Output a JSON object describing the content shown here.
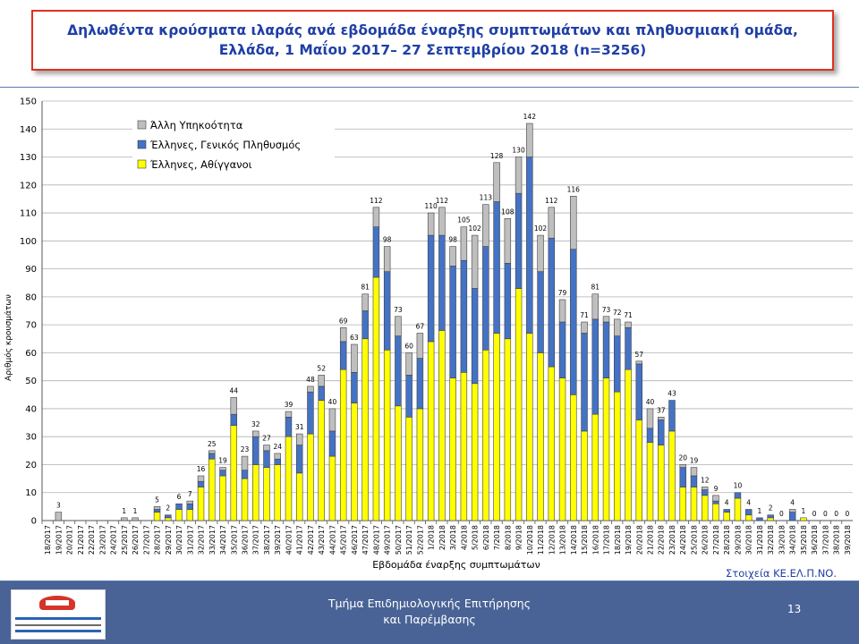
{
  "title": {
    "line1": "Δηλωθέντα κρούσματα ιλαράς ανά εβδομάδα έναρξης συμπτωμάτων και πληθυσμιακή ομάδα,",
    "line2": "Ελλάδα, 1 Μαΐου 2017– 27 Σεπτεμβρίου 2018 (n=3256)"
  },
  "source_note": "Στοιχεία ΚΕ.ΕΛ.Π.ΝΟ.",
  "footer": {
    "line1": "Τμήμα Επιδημιολογικής Επιτήρησης",
    "line2": "και Παρέμβασης",
    "page_number": "13"
  },
  "colors": {
    "title_text": "#1f3fa6",
    "title_border": "#e0301e",
    "footer_bg": "#4a6396",
    "source_note": "#1f3fa6"
  },
  "chart_data": {
    "type": "bar",
    "stacked": true,
    "xlabel": "Εβδομάδα έναρξης συμπτωμάτων",
    "ylabel": "Αριθμός κρουσμάτων",
    "ylim": [
      0,
      150
    ],
    "yticks": [
      0,
      10,
      20,
      30,
      40,
      50,
      60,
      70,
      80,
      90,
      100,
      110,
      120,
      130,
      140,
      150
    ],
    "grid": "horizontal",
    "legend_position": "top-left",
    "categories": [
      "18/2017",
      "19/2017",
      "20/2017",
      "21/2017",
      "22/2017",
      "23/2017",
      "24/2017",
      "25/2017",
      "26/2017",
      "27/2017",
      "28/2017",
      "29/2017",
      "30/2017",
      "31/2017",
      "32/2017",
      "33/2017",
      "34/2017",
      "35/2017",
      "36/2017",
      "37/2017",
      "38/2017",
      "39/2017",
      "40/2017",
      "41/2017",
      "42/2017",
      "43/2017",
      "44/2017",
      "45/2017",
      "46/2017",
      "47/2017",
      "48/2017",
      "49/2017",
      "50/2017",
      "51/2017",
      "52/2017",
      "1/2018",
      "2/2018",
      "3/2018",
      "4/2018",
      "5/2018",
      "6/2018",
      "7/2018",
      "8/2018",
      "9/2018",
      "10/2018",
      "11/2018",
      "12/2018",
      "13/2018",
      "14/2018",
      "15/2018",
      "16/2018",
      "17/2018",
      "18/2018",
      "19/2018",
      "20/2018",
      "21/2018",
      "22/2018",
      "23/2018",
      "24/2018",
      "25/2018",
      "26/2018",
      "27/2018",
      "28/2018",
      "29/2018",
      "30/2018",
      "31/2018",
      "32/2018",
      "33/2018",
      "34/2018",
      "35/2018",
      "36/2018",
      "37/2018",
      "38/2018",
      "39/2018"
    ],
    "series": [
      {
        "name": "Έλληνες, Αθίγγανοι",
        "color": "#ffff00",
        "values": [
          0,
          0,
          0,
          0,
          0,
          0,
          0,
          0,
          0,
          0,
          3,
          1,
          4,
          4,
          12,
          22,
          16,
          34,
          15,
          20,
          19,
          20,
          30,
          17,
          31,
          43,
          23,
          54,
          42,
          65,
          87,
          61,
          41,
          37,
          40,
          64,
          68,
          51,
          53,
          49,
          61,
          67,
          65,
          83,
          67,
          60,
          55,
          51,
          45,
          32,
          38,
          51,
          46,
          54,
          36,
          28,
          27,
          32,
          12,
          12,
          9,
          6,
          3,
          8,
          2,
          0,
          1,
          0,
          0,
          1,
          0,
          0,
          0,
          0
        ]
      },
      {
        "name": "Έλληνες, Γενικός Πληθυσμός",
        "color": "#4472c4",
        "values": [
          0,
          0,
          0,
          0,
          0,
          0,
          0,
          0,
          0,
          0,
          1,
          1,
          2,
          2,
          2,
          2,
          2,
          4,
          3,
          10,
          6,
          2,
          7,
          10,
          15,
          5,
          9,
          10,
          11,
          10,
          18,
          28,
          25,
          15,
          18,
          38,
          34,
          40,
          40,
          34,
          37,
          47,
          27,
          34,
          63,
          29,
          46,
          20,
          52,
          35,
          34,
          20,
          20,
          15,
          20,
          5,
          9,
          11,
          7,
          4,
          2,
          1,
          1,
          2,
          2,
          1,
          1,
          0,
          3,
          0,
          0,
          0,
          0,
          0
        ]
      },
      {
        "name": "Άλλη Υπηκοότητα",
        "color": "#bfbfbf",
        "values": [
          0,
          3,
          0,
          0,
          0,
          0,
          0,
          1,
          1,
          0,
          1,
          0,
          0,
          1,
          2,
          1,
          1,
          6,
          5,
          2,
          2,
          2,
          2,
          4,
          2,
          4,
          8,
          5,
          10,
          6,
          7,
          9,
          7,
          8,
          9,
          8,
          10,
          7,
          12,
          19,
          15,
          14,
          16,
          13,
          12,
          13,
          11,
          8,
          19,
          4,
          9,
          2,
          6,
          2,
          1,
          7,
          1,
          0,
          1,
          3,
          1,
          2,
          0,
          0,
          0,
          0,
          0,
          0,
          1,
          0,
          0,
          0,
          0,
          0
        ]
      }
    ],
    "totals": [
      0,
      3,
      0,
      0,
      0,
      0,
      0,
      1,
      1,
      0,
      5,
      2,
      6,
      7,
      16,
      25,
      19,
      44,
      23,
      32,
      27,
      24,
      39,
      31,
      48,
      52,
      40,
      69,
      63,
      81,
      112,
      98,
      73,
      60,
      67,
      110,
      112,
      98,
      105,
      102,
      113,
      128,
      108,
      130,
      142,
      102,
      112,
      79,
      116,
      71,
      81,
      73,
      72,
      71,
      57,
      40,
      37,
      43,
      20,
      19,
      12,
      9,
      4,
      10,
      4,
      1,
      2,
      0,
      4,
      1,
      0,
      0,
      0,
      0
    ],
    "data_labels": [
      "",
      "3",
      "",
      "",
      "",
      "",
      "",
      "1",
      "1",
      "",
      "5",
      "2",
      "6",
      "7",
      "16",
      "25",
      "19",
      "44",
      "23",
      "32",
      "27",
      "24",
      "39",
      "31",
      "48",
      "52",
      "40",
      "69",
      "63",
      "81",
      "112",
      "98",
      "73",
      "60",
      "67",
      "110",
      "112",
      "98",
      "105",
      "102",
      "113",
      "128",
      "108",
      "130",
      "142",
      "102",
      "112",
      "79",
      "116",
      "71",
      "81",
      "73",
      "72",
      "71",
      "57",
      "40",
      "37",
      "43",
      "20",
      "19",
      "12",
      "9",
      "4",
      "10",
      "4",
      "1",
      "2",
      "0",
      "4",
      "1",
      "0",
      "0",
      "0",
      "0"
    ]
  }
}
